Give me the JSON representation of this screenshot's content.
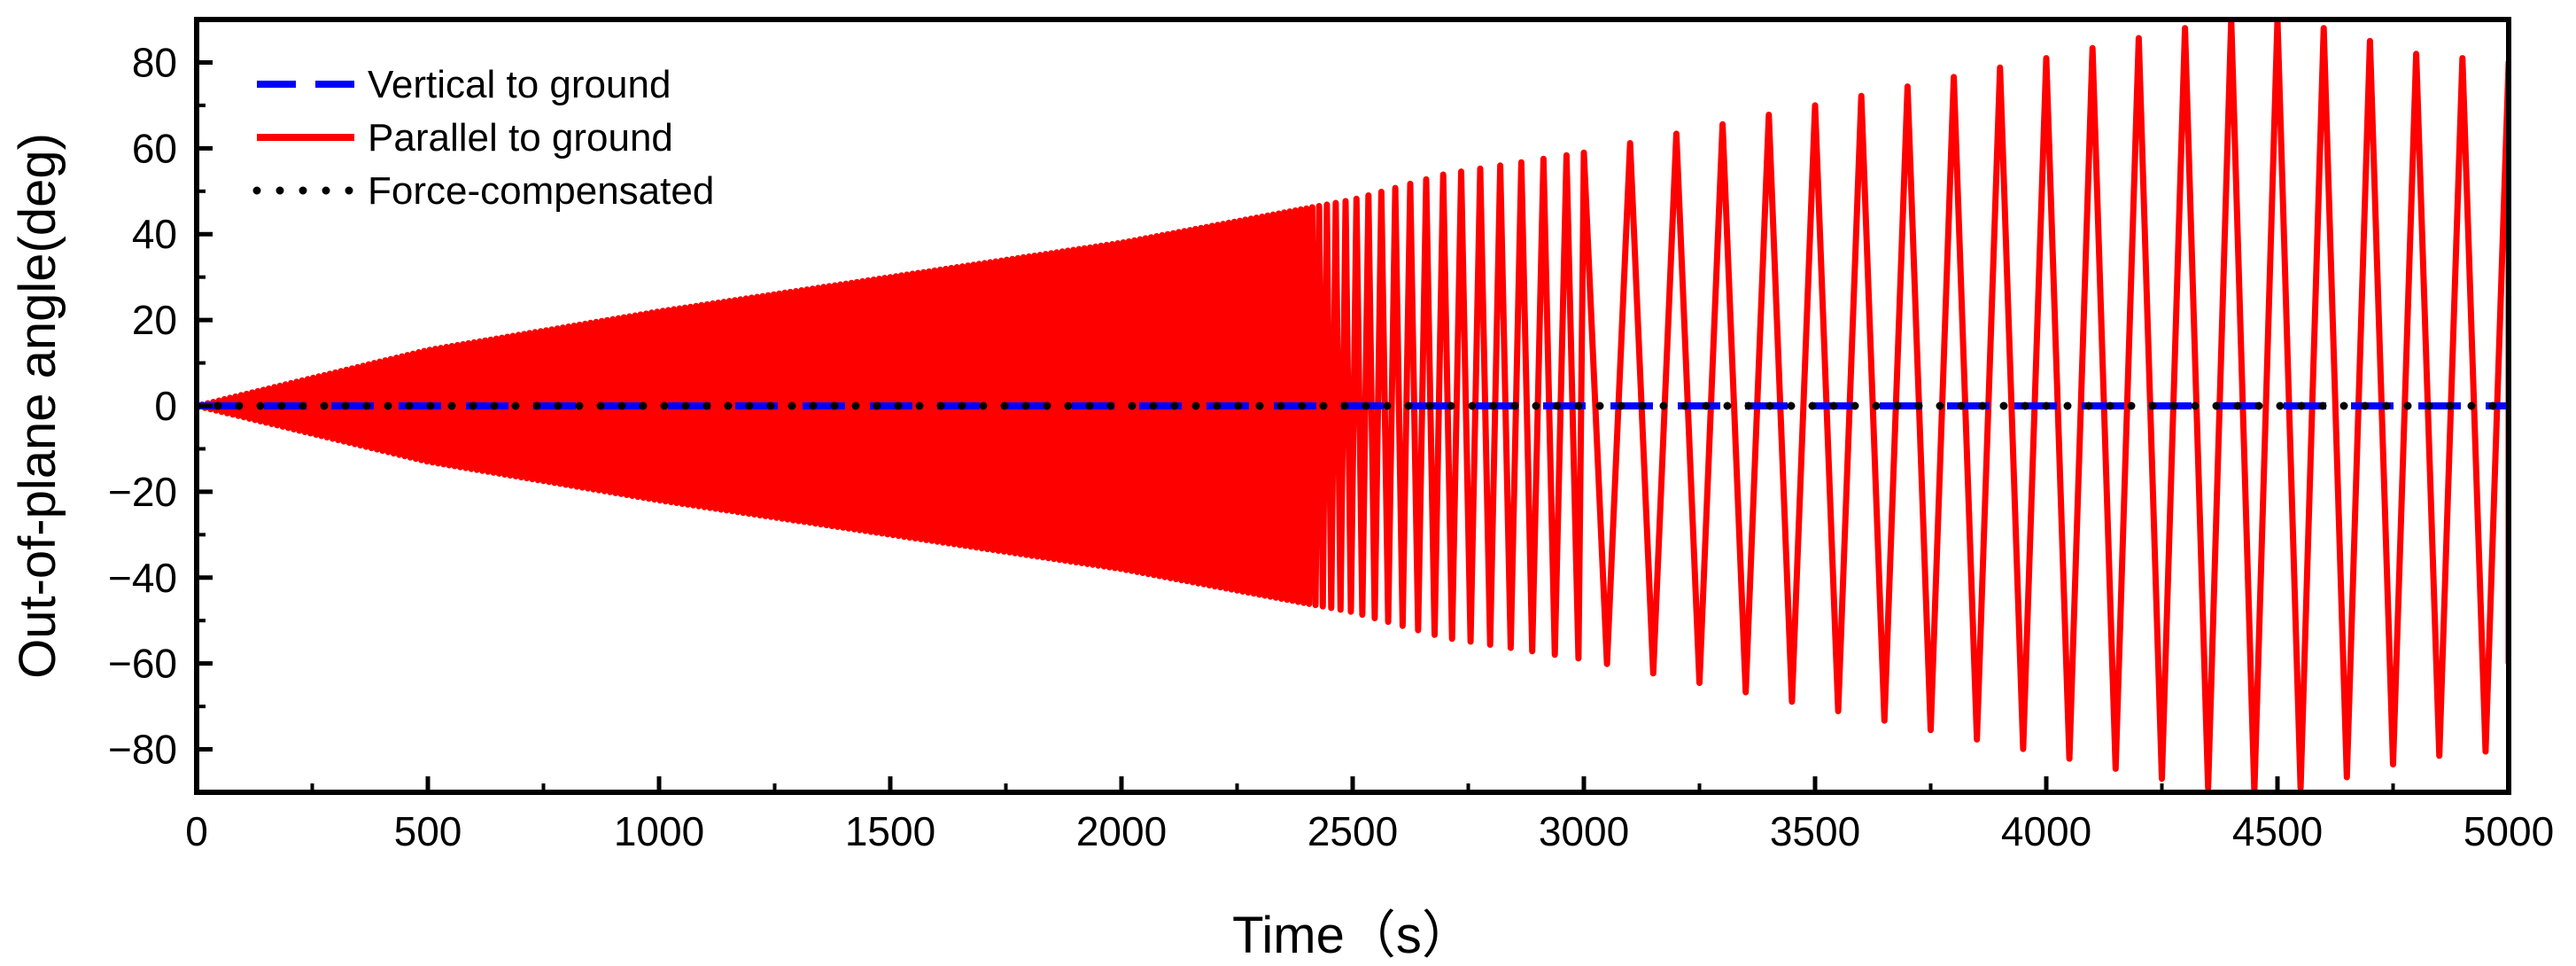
{
  "chart_data": {
    "type": "line",
    "xlabel": "Time（s）",
    "ylabel": "Out-of-plane angle(deg)",
    "xlim": [
      0,
      5000
    ],
    "ylim": [
      -90,
      90
    ],
    "x_ticks": [
      0,
      500,
      1000,
      1500,
      2000,
      2500,
      3000,
      3500,
      4000,
      4500,
      5000
    ],
    "x_tick_labels": [
      "0",
      "500",
      "1000",
      "1500",
      "2000",
      "2500",
      "3000",
      "3500",
      "4000",
      "4500",
      "5000"
    ],
    "y_ticks": [
      80,
      60,
      40,
      20,
      0,
      -20,
      -40,
      -60,
      -80
    ],
    "y_tick_labels": [
      "80",
      "60",
      "40",
      "20",
      "0",
      "−20",
      "−40",
      "−60",
      "−80"
    ],
    "grid": false,
    "legend_position": "top-left",
    "series": [
      {
        "name": "Vertical to ground",
        "color": "#0000ff",
        "style": "dashed",
        "x": [
          0,
          5000
        ],
        "y": [
          0,
          0
        ]
      },
      {
        "name": "Parallel to ground",
        "color": "#ff0000",
        "style": "solid",
        "description": "oscillation with growing amplitude and decreasing frequency",
        "envelope_x": [
          0,
          500,
          1000,
          1500,
          2000,
          2500,
          2700,
          3000,
          3500,
          4000,
          4300,
          4400,
          4500,
          4600,
          4800,
          5000
        ],
        "envelope_y": [
          0,
          13,
          22,
          30,
          38,
          48,
          54,
          59,
          70,
          81,
          88,
          90,
          90,
          88,
          82,
          80
        ],
        "peak_times": [
          3000,
          3100,
          3200,
          3300,
          3400,
          3500,
          3600,
          3700,
          3800,
          3900,
          4000,
          4100,
          4200,
          4300,
          4400,
          4500,
          4600,
          4700,
          4800,
          4900,
          5000
        ]
      },
      {
        "name": "Force-compensated",
        "color": "#000000",
        "style": "dotted",
        "x": [
          0,
          5000
        ],
        "y": [
          0,
          0
        ]
      }
    ]
  }
}
